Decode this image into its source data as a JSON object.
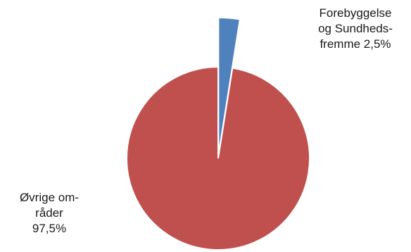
{
  "chart_data": {
    "type": "pie",
    "slices": [
      {
        "label_lines": [
          "Forebyggelse",
          "og Sundheds-",
          "fremme 2,5%"
        ],
        "value": 2.5,
        "color": "#4f81bd",
        "exploded": true
      },
      {
        "label_lines": [
          "Øvrige om-",
          "råder",
          "97,5%"
        ],
        "value": 97.5,
        "color": "#c0504d",
        "exploded": false
      }
    ],
    "legend": "none"
  }
}
